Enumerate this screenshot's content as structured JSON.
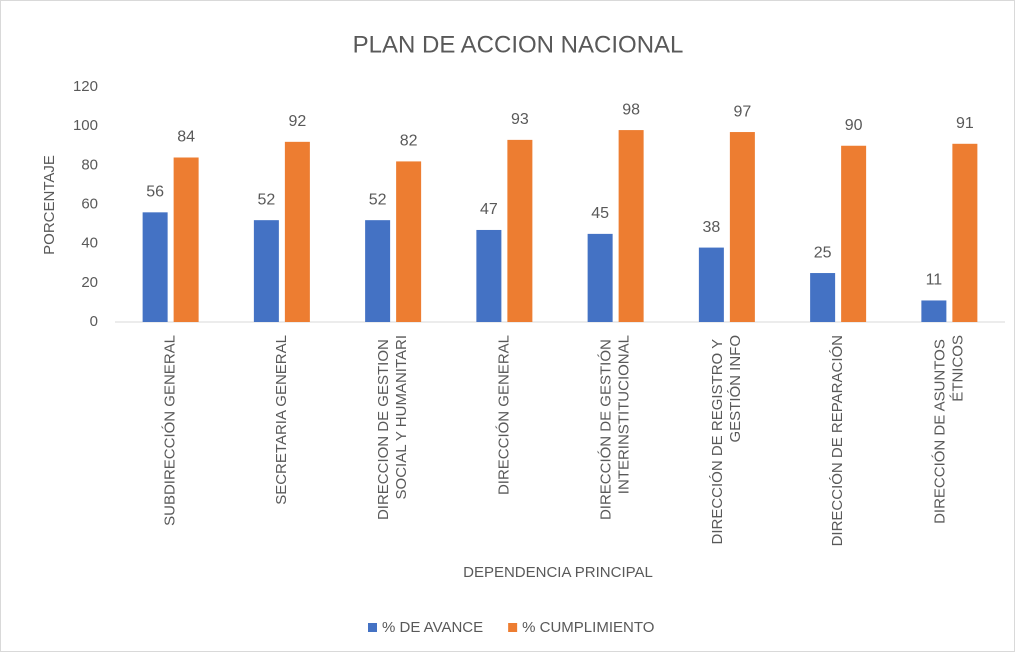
{
  "chart_data": {
    "type": "bar",
    "title": "PLAN DE ACCION NACIONAL",
    "x_label": "DEPENDENCIA PRINCIPAL",
    "y_label": "PORCENTAJE",
    "categories": [
      "SUBDIRECCIÓN GENERAL",
      "SECRETARIA GENERAL",
      "DIRECCION DE GESTION SOCIAL Y HUMANITARI",
      "DIRECCIÓN GENERAL",
      "DIRECCIÓN DE GESTIÓN INTERINSTITUCIONAL",
      "DIRECCIÓN DE REGISTRO Y GESTIÓN INFO",
      "DIRECCIÓN DE REPARACIÓN",
      "DIRECCIÓN DE ASUNTOS ÉTNICOS"
    ],
    "series": [
      {
        "name": "% DE AVANCE",
        "color": "#4472c4",
        "values": [
          56,
          52,
          52,
          47,
          45,
          38,
          25,
          11
        ]
      },
      {
        "name": "% CUMPLIMIENTO",
        "color": "#ed7d31",
        "values": [
          84,
          92,
          82,
          93,
          98,
          97,
          90,
          91
        ]
      }
    ],
    "ylim": [
      0,
      120
    ],
    "yticks": [
      0,
      20,
      40,
      60,
      80,
      100,
      120
    ],
    "grid": false,
    "legend": "bottom"
  }
}
